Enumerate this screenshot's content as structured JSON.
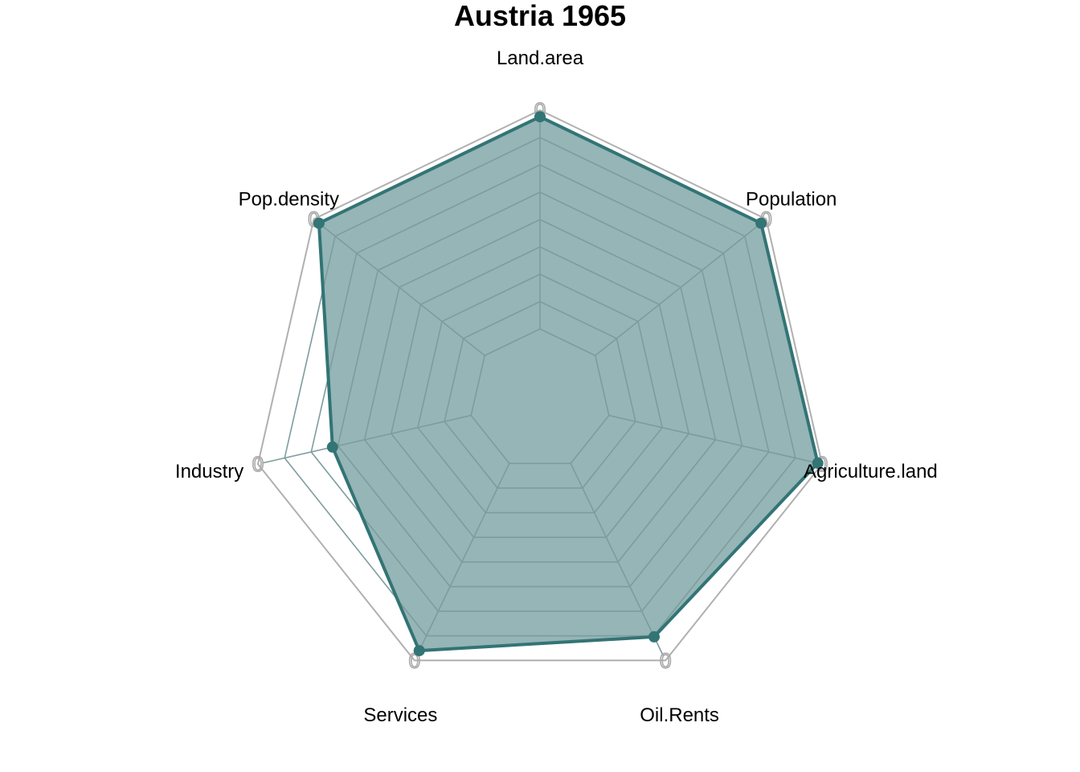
{
  "chart_data": {
    "type": "radar",
    "title": "Austria 1965",
    "axes": [
      "Land.area",
      "Population",
      "Agriculture.land",
      "Oil.Rents",
      "Services",
      "Industry",
      "Pop.density"
    ],
    "ring_label": "0",
    "range": [
      0,
      1
    ],
    "grid_levels": 8,
    "series": [
      {
        "values": [
          0.97,
          0.97,
          0.98,
          0.88,
          0.95,
          0.65,
          0.97
        ]
      }
    ],
    "colors": {
      "series_line": "#337475",
      "series_fill": "#95b5b7",
      "grid": "#7f9c9d",
      "outer_frame": "#b0b0b0"
    }
  }
}
